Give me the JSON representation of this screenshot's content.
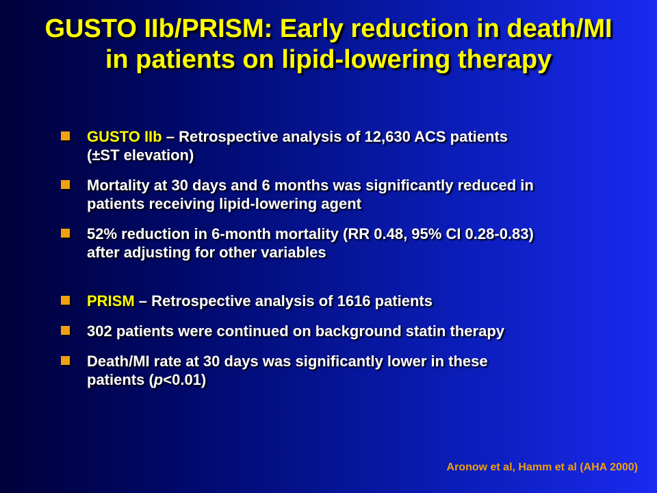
{
  "title": {
    "line1": "GUSTO IIb/PRISM: Early reduction in death/MI",
    "line2": "in patients on lipid-lowering therapy"
  },
  "bullets": [
    {
      "lead": "GUSTO IIb",
      "line1": " – Retrospective analysis of 12,630 ACS patients",
      "line2": "(±ST elevation)"
    },
    {
      "line1": "Mortality at 30 days and 6 months was significantly reduced in",
      "line2": "patients receiving lipid-lowering agent"
    },
    {
      "line1": "52% reduction in 6-month mortality (RR 0.48, 95% CI 0.28-0.83)",
      "line2": "after adjusting for other variables"
    },
    {
      "lead": "PRISM",
      "line1": " – Retrospective analysis of 1616 patients"
    },
    {
      "line1": "302 patients were continued on background statin therapy"
    },
    {
      "line1": "Death/MI rate at 30 days was significantly lower in these",
      "line2_pre": "patients (",
      "line2_italic": "p",
      "line2_post": "<0.01)"
    }
  ],
  "footer": "Aronow et al, Hamm et al (AHA 2000)",
  "colors": {
    "title": "#ffff00",
    "body_text": "#ffffff",
    "bullet_marker": "#f0a010",
    "footer": "#f0a010",
    "background_left": "#00003a",
    "background_right": "#1a2af0"
  }
}
